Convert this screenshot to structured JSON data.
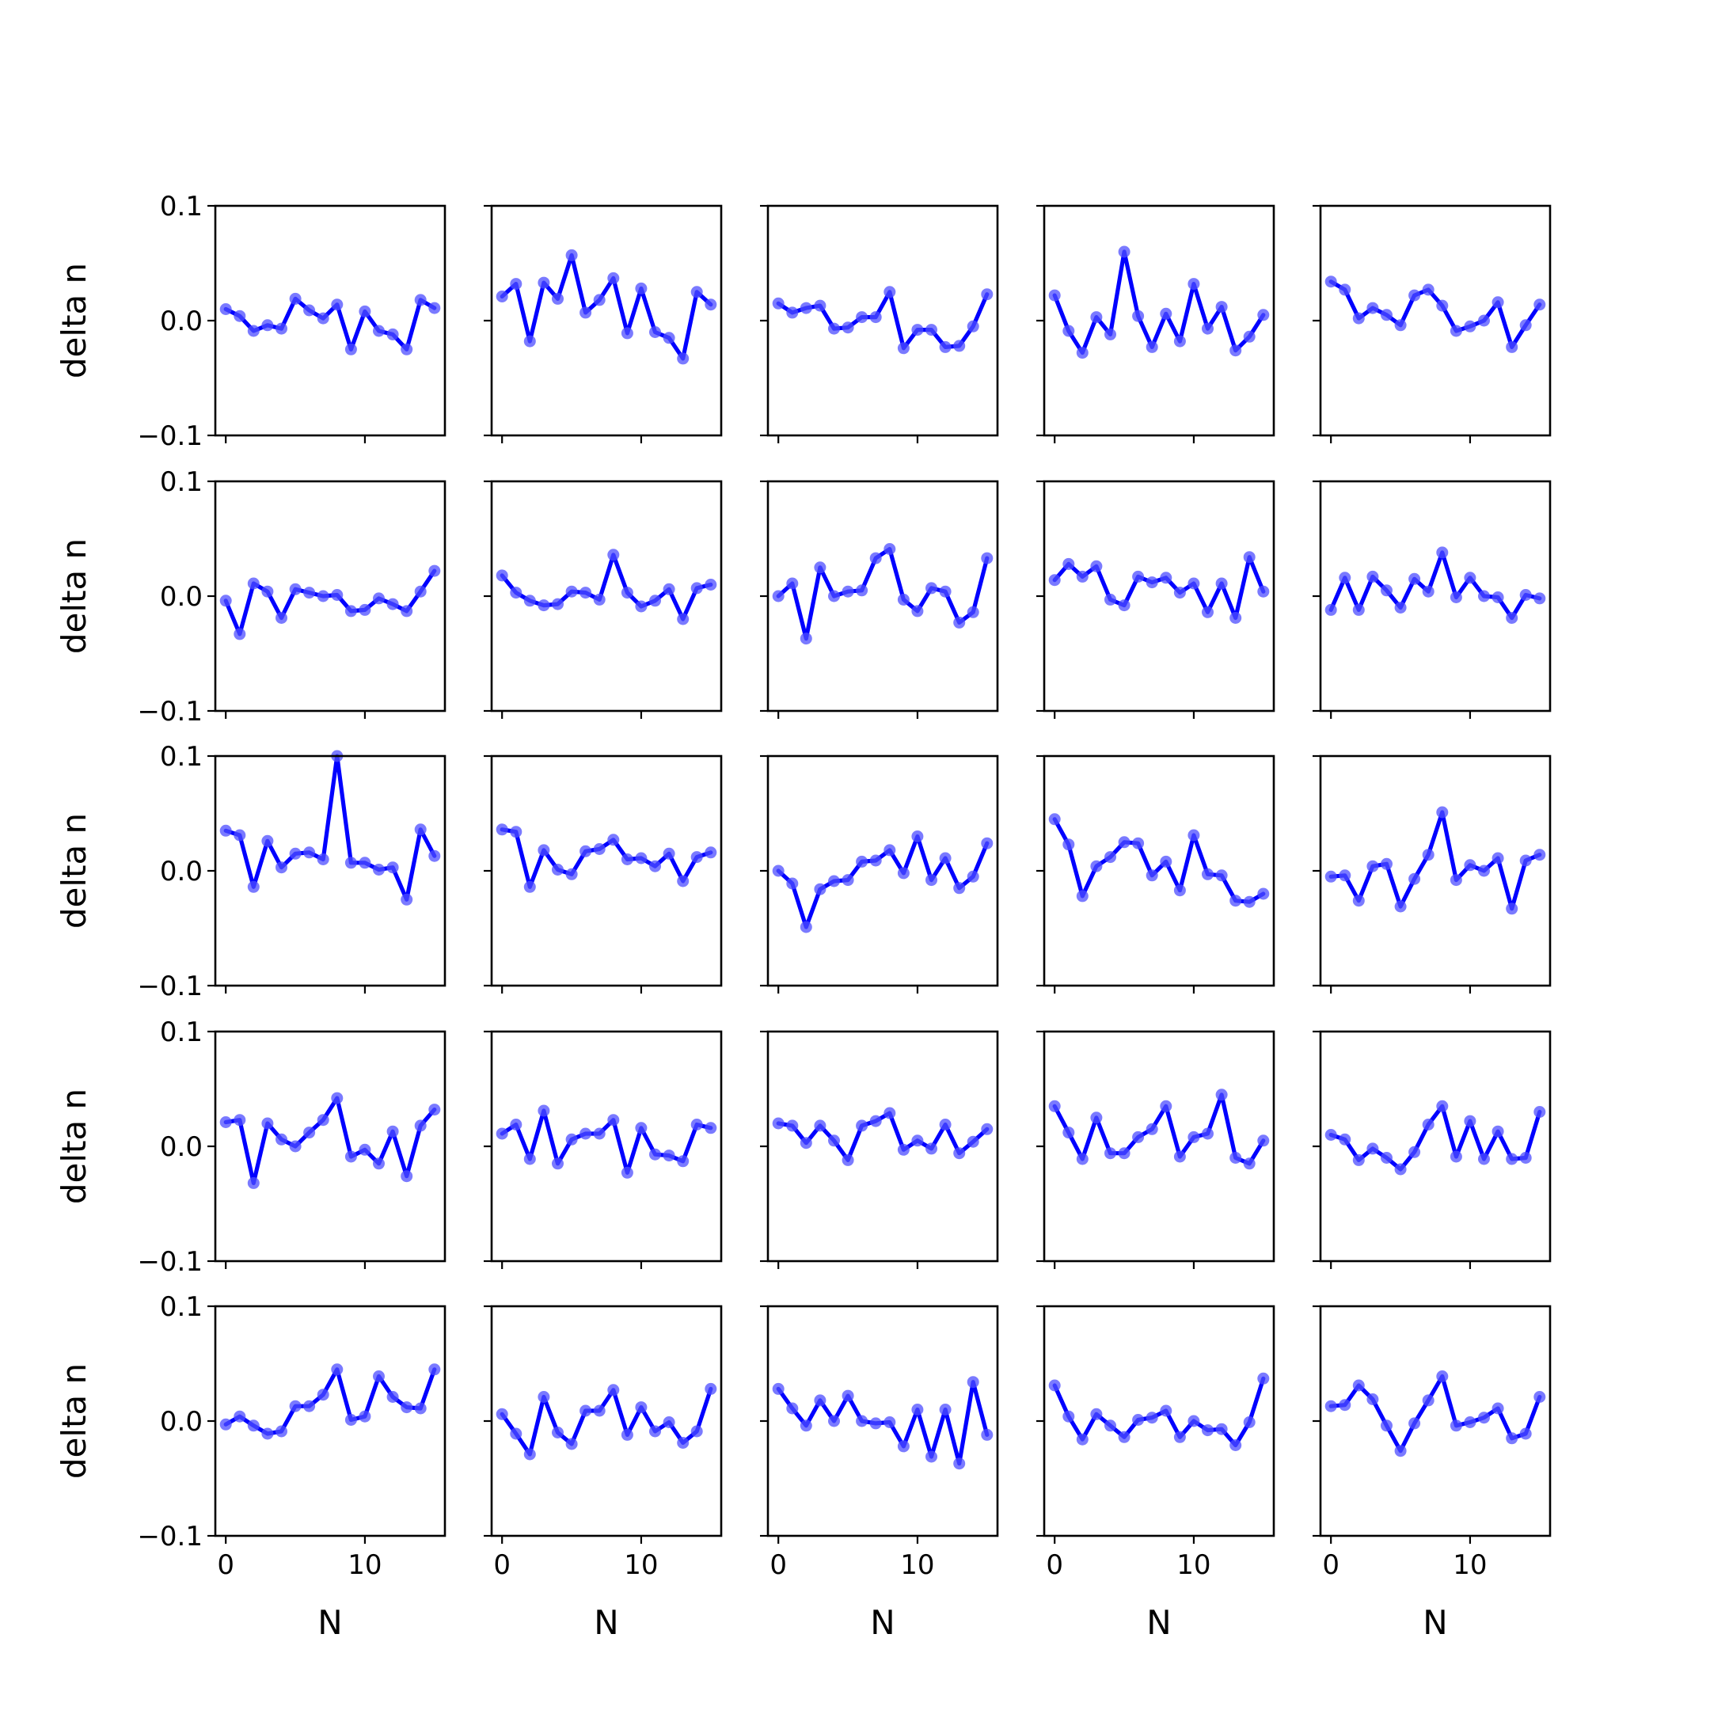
{
  "chart_data": {
    "type": "line",
    "layout": {
      "rows": 5,
      "cols": 5
    },
    "xlabel": "N",
    "ylabel": "delta n",
    "xlim": [
      -0.75,
      15.75
    ],
    "ylim": [
      -0.1,
      0.1
    ],
    "xticks": [
      0,
      10
    ],
    "yticks": [
      -0.1,
      0.0,
      0.1
    ],
    "ytick_labels": [
      "−0.1",
      "0.0",
      "0.1"
    ],
    "xtick_labels": [
      "0",
      "10"
    ],
    "grid": false,
    "line_color": "#0000ff",
    "marker_color": "#4d4dff",
    "x": [
      0,
      1,
      2,
      3,
      4,
      5,
      6,
      7,
      8,
      9,
      10,
      11,
      12,
      13,
      14,
      15
    ],
    "panels": [
      [
        0.01,
        0.004,
        -0.009,
        -0.004,
        -0.007,
        0.019,
        0.009,
        0.002,
        0.014,
        -0.025,
        0.008,
        -0.009,
        -0.012,
        -0.025,
        0.018,
        0.011
      ],
      [
        0.021,
        0.032,
        -0.018,
        0.033,
        0.019,
        0.057,
        0.007,
        0.018,
        0.037,
        -0.011,
        0.028,
        -0.01,
        -0.015,
        -0.033,
        0.025,
        0.014
      ],
      [
        0.015,
        0.007,
        0.011,
        0.013,
        -0.007,
        -0.006,
        0.003,
        0.003,
        0.025,
        -0.024,
        -0.008,
        -0.008,
        -0.023,
        -0.022,
        -0.005,
        0.023
      ],
      [
        0.022,
        -0.009,
        -0.028,
        0.003,
        -0.012,
        0.06,
        0.004,
        -0.023,
        0.006,
        -0.018,
        0.032,
        -0.007,
        0.012,
        -0.026,
        -0.014,
        0.005
      ],
      [
        0.034,
        0.027,
        0.002,
        0.011,
        0.005,
        -0.004,
        0.022,
        0.027,
        0.013,
        -0.009,
        -0.005,
        0.0,
        0.016,
        -0.023,
        -0.004,
        0.014
      ],
      [
        -0.004,
        -0.033,
        0.011,
        0.004,
        -0.019,
        0.006,
        0.003,
        0.0,
        0.001,
        -0.013,
        -0.012,
        -0.002,
        -0.007,
        -0.013,
        0.004,
        0.022
      ],
      [
        0.018,
        0.003,
        -0.004,
        -0.008,
        -0.007,
        0.004,
        0.003,
        -0.003,
        0.036,
        0.003,
        -0.009,
        -0.004,
        0.006,
        -0.02,
        0.007,
        0.01
      ],
      [
        0.0,
        0.011,
        -0.037,
        0.025,
        0.0,
        0.004,
        0.005,
        0.033,
        0.041,
        -0.003,
        -0.013,
        0.007,
        0.004,
        -0.023,
        -0.014,
        0.033
      ],
      [
        0.014,
        0.028,
        0.017,
        0.026,
        -0.003,
        -0.008,
        0.017,
        0.012,
        0.016,
        0.003,
        0.011,
        -0.014,
        0.011,
        -0.019,
        0.034,
        0.004
      ],
      [
        -0.012,
        0.016,
        -0.012,
        0.017,
        0.005,
        -0.01,
        0.015,
        0.004,
        0.038,
        -0.001,
        0.016,
        0.0,
        -0.001,
        -0.019,
        0.001,
        -0.002
      ],
      [
        0.035,
        0.031,
        -0.014,
        0.026,
        0.003,
        0.015,
        0.016,
        0.01,
        0.1,
        0.007,
        0.007,
        0.001,
        0.003,
        -0.025,
        0.036,
        0.013
      ],
      [
        0.036,
        0.034,
        -0.014,
        0.018,
        0.001,
        -0.003,
        0.017,
        0.019,
        0.027,
        0.01,
        0.011,
        0.004,
        0.015,
        -0.009,
        0.012,
        0.016
      ],
      [
        0.0,
        -0.011,
        -0.049,
        -0.016,
        -0.009,
        -0.008,
        0.008,
        0.009,
        0.018,
        -0.002,
        0.03,
        -0.008,
        0.011,
        -0.015,
        -0.005,
        0.024
      ],
      [
        0.045,
        0.023,
        -0.022,
        0.004,
        0.012,
        0.025,
        0.024,
        -0.004,
        0.008,
        -0.017,
        0.031,
        -0.003,
        -0.004,
        -0.026,
        -0.027,
        -0.02
      ],
      [
        -0.005,
        -0.004,
        -0.026,
        0.004,
        0.006,
        -0.031,
        -0.007,
        0.014,
        0.051,
        -0.008,
        0.005,
        0.0,
        0.011,
        -0.033,
        0.009,
        0.014
      ],
      [
        0.021,
        0.023,
        -0.032,
        0.02,
        0.006,
        0.0,
        0.012,
        0.023,
        0.042,
        -0.009,
        -0.003,
        -0.015,
        0.013,
        -0.026,
        0.018,
        0.032
      ],
      [
        0.011,
        0.019,
        -0.011,
        0.031,
        -0.015,
        0.006,
        0.011,
        0.011,
        0.023,
        -0.023,
        0.016,
        -0.007,
        -0.008,
        -0.013,
        0.019,
        0.016
      ],
      [
        0.02,
        0.018,
        0.003,
        0.018,
        0.005,
        -0.012,
        0.018,
        0.022,
        0.029,
        -0.003,
        0.005,
        -0.002,
        0.019,
        -0.006,
        0.004,
        0.015
      ],
      [
        0.035,
        0.012,
        -0.011,
        0.025,
        -0.006,
        -0.006,
        0.008,
        0.015,
        0.035,
        -0.009,
        0.008,
        0.011,
        0.045,
        -0.01,
        -0.015,
        0.005
      ],
      [
        0.01,
        0.006,
        -0.012,
        -0.002,
        -0.01,
        -0.02,
        -0.005,
        0.019,
        0.035,
        -0.009,
        0.022,
        -0.011,
        0.013,
        -0.011,
        -0.01,
        0.03
      ],
      [
        -0.003,
        0.004,
        -0.004,
        -0.011,
        -0.009,
        0.013,
        0.013,
        0.023,
        0.045,
        0.001,
        0.004,
        0.039,
        0.021,
        0.012,
        0.011,
        0.045
      ],
      [
        0.006,
        -0.011,
        -0.029,
        0.021,
        -0.01,
        -0.02,
        0.009,
        0.009,
        0.027,
        -0.012,
        0.012,
        -0.009,
        -0.001,
        -0.019,
        -0.009,
        0.028
      ],
      [
        0.028,
        0.011,
        -0.004,
        0.018,
        0.0,
        0.022,
        0.0,
        -0.002,
        -0.001,
        -0.022,
        0.01,
        -0.031,
        0.01,
        -0.037,
        0.034,
        -0.012
      ],
      [
        0.031,
        0.004,
        -0.016,
        0.006,
        -0.004,
        -0.014,
        0.001,
        0.003,
        0.009,
        -0.014,
        0.0,
        -0.008,
        -0.007,
        -0.021,
        -0.001,
        0.037
      ],
      [
        0.013,
        0.014,
        0.031,
        0.019,
        -0.004,
        -0.026,
        -0.002,
        0.018,
        0.039,
        -0.004,
        -0.001,
        0.003,
        0.011,
        -0.015,
        -0.011,
        0.021
      ]
    ]
  }
}
